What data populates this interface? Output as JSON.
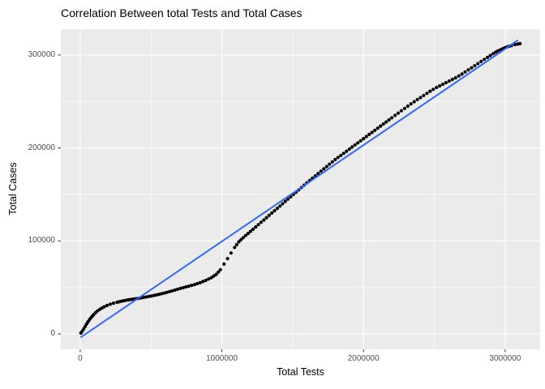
{
  "chart_data": {
    "type": "scatter",
    "title": "Correlation Between total Tests and Total Cases",
    "xlabel": "Total Tests",
    "ylabel": "Total Cases",
    "legend": "none",
    "grid": "major-and-minor-white-on-grey-panel",
    "xlim": [
      -137000,
      3247000
    ],
    "ylim": [
      -16600,
      327800
    ],
    "x_ticks": [
      0,
      1000000,
      2000000,
      3000000
    ],
    "x_tick_labels": [
      "0",
      "1000000",
      "2000000",
      "3000000"
    ],
    "x_minor_ticks": [
      500000,
      1500000,
      2500000
    ],
    "y_ticks": [
      0,
      100000,
      200000,
      300000
    ],
    "y_tick_labels": [
      "0",
      "100000",
      "200000",
      "300000"
    ],
    "y_minor_ticks": [
      50000,
      150000,
      250000
    ],
    "trend_line": {
      "x1": 6000,
      "y1": -3500,
      "x2": 3087000,
      "y2": 315600
    },
    "points": [
      [
        5000,
        800
      ],
      [
        15000,
        3000
      ],
      [
        25000,
        5500
      ],
      [
        35000,
        8000
      ],
      [
        45000,
        10500
      ],
      [
        55000,
        13000
      ],
      [
        65000,
        15200
      ],
      [
        75000,
        17200
      ],
      [
        85000,
        19000
      ],
      [
        95000,
        20800
      ],
      [
        108000,
        22800
      ],
      [
        122000,
        24600
      ],
      [
        137000,
        26300
      ],
      [
        153000,
        27800
      ],
      [
        170000,
        29200
      ],
      [
        190000,
        30600
      ],
      [
        212000,
        31900
      ],
      [
        235000,
        33000
      ],
      [
        260000,
        34000
      ],
      [
        287000,
        35000
      ],
      [
        315000,
        35900
      ],
      [
        344000,
        36700
      ],
      [
        374000,
        37400
      ],
      [
        405000,
        38100
      ],
      [
        437000,
        38900
      ],
      [
        470000,
        39800
      ],
      [
        504000,
        40800
      ],
      [
        539000,
        41900
      ],
      [
        575000,
        43200
      ],
      [
        612000,
        44700
      ],
      [
        650000,
        46300
      ],
      [
        688000,
        48000
      ],
      [
        727000,
        49700
      ],
      [
        766000,
        51300
      ],
      [
        806000,
        53000
      ],
      [
        846000,
        55000
      ],
      [
        886000,
        57500
      ],
      [
        926000,
        60500
      ],
      [
        960000,
        64000
      ],
      [
        990000,
        69000
      ],
      [
        1015000,
        75000
      ],
      [
        1040000,
        81000
      ],
      [
        1065000,
        87000
      ],
      [
        1090000,
        93000
      ],
      [
        1120000,
        99000
      ],
      [
        1150000,
        103500
      ],
      [
        1185000,
        108000
      ],
      [
        1220000,
        112500
      ],
      [
        1258000,
        117500
      ],
      [
        1296000,
        122500
      ],
      [
        1334000,
        127500
      ],
      [
        1372000,
        132500
      ],
      [
        1410000,
        137500
      ],
      [
        1448000,
        142500
      ],
      [
        1486000,
        147500
      ],
      [
        1524000,
        152500
      ],
      [
        1562000,
        157500
      ],
      [
        1600000,
        162500
      ],
      [
        1640000,
        167500
      ],
      [
        1680000,
        172500
      ],
      [
        1720000,
        177500
      ],
      [
        1760000,
        182500
      ],
      [
        1800000,
        187500
      ],
      [
        1840000,
        192000
      ],
      [
        1880000,
        196500
      ],
      [
        1920000,
        201000
      ],
      [
        1960000,
        205500
      ],
      [
        2000000,
        210000
      ],
      [
        2040000,
        214500
      ],
      [
        2080000,
        219000
      ],
      [
        2120000,
        223500
      ],
      [
        2160000,
        228000
      ],
      [
        2200000,
        232500
      ],
      [
        2245000,
        237500
      ],
      [
        2290000,
        242500
      ],
      [
        2335000,
        247500
      ],
      [
        2380000,
        252000
      ],
      [
        2425000,
        256500
      ],
      [
        2470000,
        261000
      ],
      [
        2515000,
        265000
      ],
      [
        2560000,
        268500
      ],
      [
        2605000,
        272000
      ],
      [
        2650000,
        275500
      ],
      [
        2695000,
        279500
      ],
      [
        2740000,
        284000
      ],
      [
        2785000,
        288500
      ],
      [
        2830000,
        293000
      ],
      [
        2875000,
        297500
      ],
      [
        2915000,
        301500
      ],
      [
        2950000,
        304500
      ],
      [
        2985000,
        307000
      ],
      [
        3015000,
        308800
      ],
      [
        3045000,
        310200
      ],
      [
        3070000,
        311200
      ],
      [
        3090000,
        311800
      ],
      [
        3105000,
        312200
      ]
    ],
    "colors": {
      "panel_bg": "#EBEBEB",
      "grid": "#FFFFFF",
      "point": "#000000",
      "trend": "#3366FF",
      "tick_text": "#4D4D4D",
      "tick_mark": "#333333",
      "title_text": "#000000"
    }
  }
}
